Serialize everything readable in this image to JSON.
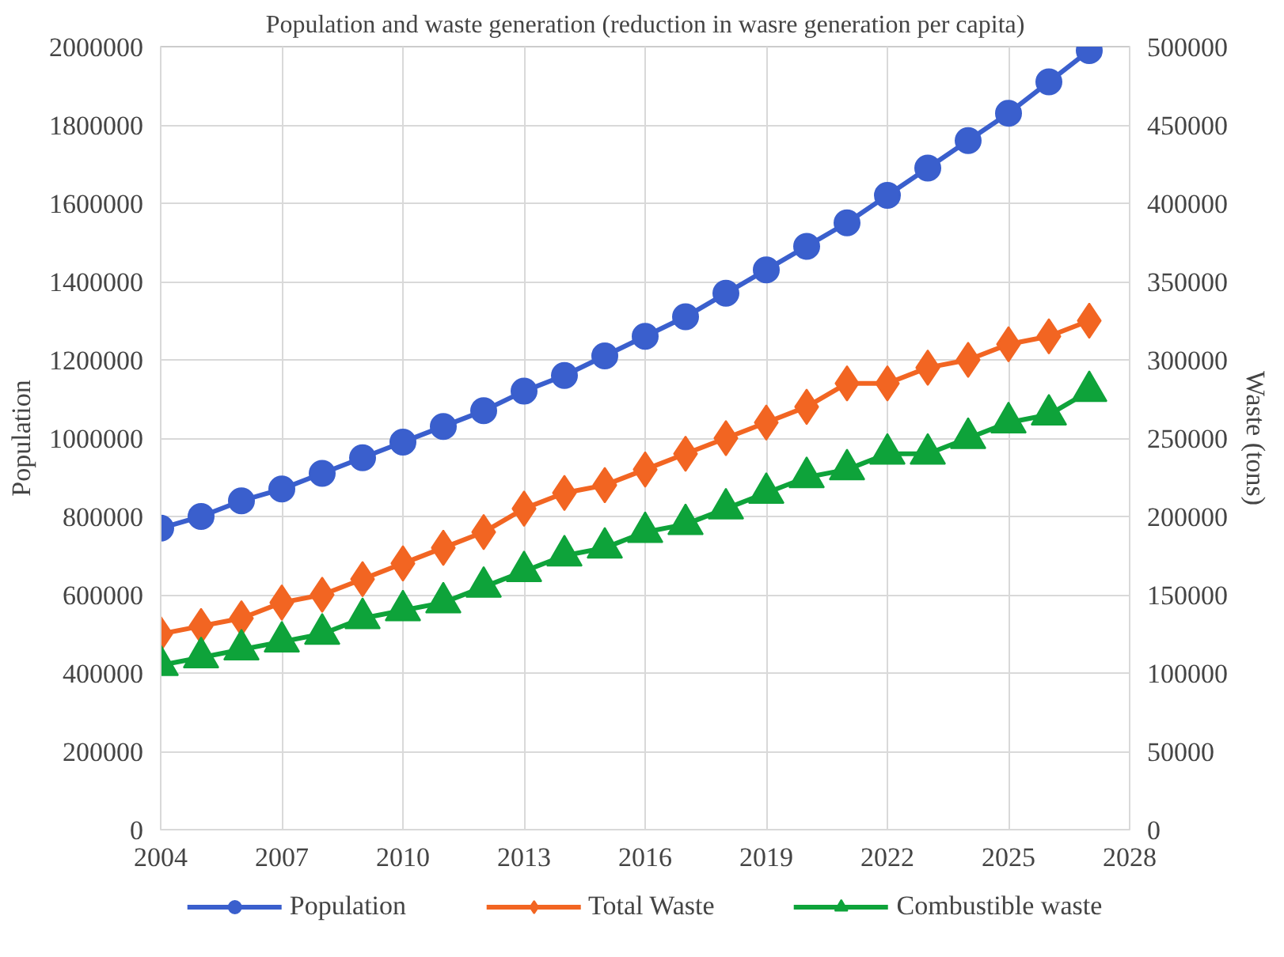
{
  "chart_data": {
    "type": "line",
    "title": "Population and waste generation (reduction in wasre generation per capita)",
    "ylabel": "Population",
    "y2label": "Waste (tons)",
    "x": [
      2004,
      2005,
      2006,
      2007,
      2008,
      2009,
      2010,
      2011,
      2012,
      2013,
      2014,
      2015,
      2016,
      2017,
      2018,
      2019,
      2020,
      2021,
      2022,
      2023,
      2024,
      2025,
      2026,
      2027
    ],
    "xlim": [
      2004,
      2028
    ],
    "xticks": [
      2004,
      2007,
      2010,
      2013,
      2016,
      2019,
      2022,
      2025,
      2028
    ],
    "ylim": [
      0,
      2000000
    ],
    "yticks": [
      0,
      200000,
      400000,
      600000,
      800000,
      1000000,
      1200000,
      1400000,
      1600000,
      1800000,
      2000000
    ],
    "y2lim": [
      0,
      500000
    ],
    "y2ticks": [
      0,
      50000,
      100000,
      150000,
      200000,
      250000,
      300000,
      350000,
      400000,
      450000,
      500000
    ],
    "grid": true,
    "legend": "bottom",
    "series": [
      {
        "name": "Population",
        "color": "#3a5fcd",
        "marker": "circle",
        "values": [
          770000,
          800000,
          840000,
          870000,
          910000,
          950000,
          990000,
          1030000,
          1070000,
          1120000,
          1160000,
          1210000,
          1260000,
          1310000,
          1370000,
          1430000,
          1490000,
          1550000,
          1620000,
          1690000,
          1760000,
          1830000,
          1910000,
          1990000
        ]
      },
      {
        "name": "Total Waste",
        "color": "#f26522",
        "marker": "diamond",
        "axis": "y2",
        "values": [
          125000,
          130000,
          135000,
          145000,
          150000,
          160000,
          170000,
          180000,
          190000,
          205000,
          215000,
          220000,
          230000,
          240000,
          250000,
          260000,
          270000,
          285000,
          285000,
          295000,
          300000,
          310000,
          315000,
          325000
        ]
      },
      {
        "name": "Combustible waste",
        "color": "#0ea33a",
        "marker": "triangle",
        "axis": "y2",
        "values": [
          105000,
          110000,
          115000,
          120000,
          125000,
          135000,
          140000,
          145000,
          155000,
          165000,
          175000,
          180000,
          190000,
          195000,
          205000,
          215000,
          225000,
          230000,
          240000,
          240000,
          250000,
          260000,
          265000,
          280000
        ]
      }
    ]
  }
}
